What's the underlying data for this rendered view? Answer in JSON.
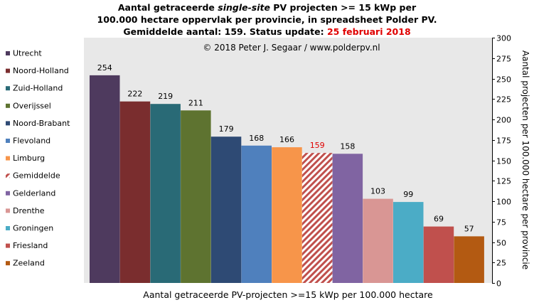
{
  "title": {
    "line1_a": "Aantal getraceerde ",
    "line1_b": "single-site",
    "line1_c": " PV projecten >= 15 kWp per",
    "line2": "100.000 hectare oppervlak per provincie, in spreadsheet Polder PV.",
    "line3": "Gemiddelde aantal: 159. Status update: ",
    "line3_date": "25 februari 2018"
  },
  "chart_data": {
    "type": "bar",
    "copyright": "© 2018 Peter J. Segaar / www.polderpv.nl",
    "xlabel": "Aantal getraceerde PV-projecten >=15 kWp per 100.000 hectare",
    "ylabel": "Aantal projecten per 100.000 hectare per provincie",
    "ylim": [
      0,
      300
    ],
    "yticks": [
      0,
      25,
      50,
      75,
      100,
      125,
      150,
      175,
      200,
      225,
      250,
      275,
      300
    ],
    "grid": false,
    "legend_position": "left",
    "categories": [
      "Utrecht",
      "Noord-Holland",
      "Zuid-Holland",
      "Overijssel",
      "Noord-Brabant",
      "Flevoland",
      "Limburg",
      "Gemiddelde",
      "Gelderland",
      "Drenthe",
      "Groningen",
      "Friesland",
      "Zeeland"
    ],
    "values": [
      254,
      222,
      219,
      211,
      179,
      168,
      166,
      159,
      158,
      103,
      99,
      69,
      57
    ],
    "colors": [
      "#4e3a5e",
      "#7a2d2e",
      "#296a76",
      "#5e7330",
      "#2e4a74",
      "#4f80bd",
      "#f7954a",
      "#c0504d",
      "#8064a2",
      "#d99694",
      "#4bacc6",
      "#c0504d",
      "#b35a12"
    ],
    "hatched": [
      false,
      false,
      false,
      false,
      false,
      false,
      false,
      true,
      false,
      false,
      false,
      false,
      false
    ],
    "label_colors": [
      "#000000",
      "#000000",
      "#000000",
      "#000000",
      "#000000",
      "#000000",
      "#000000",
      "#e00000",
      "#000000",
      "#000000",
      "#000000",
      "#000000",
      "#000000"
    ]
  }
}
